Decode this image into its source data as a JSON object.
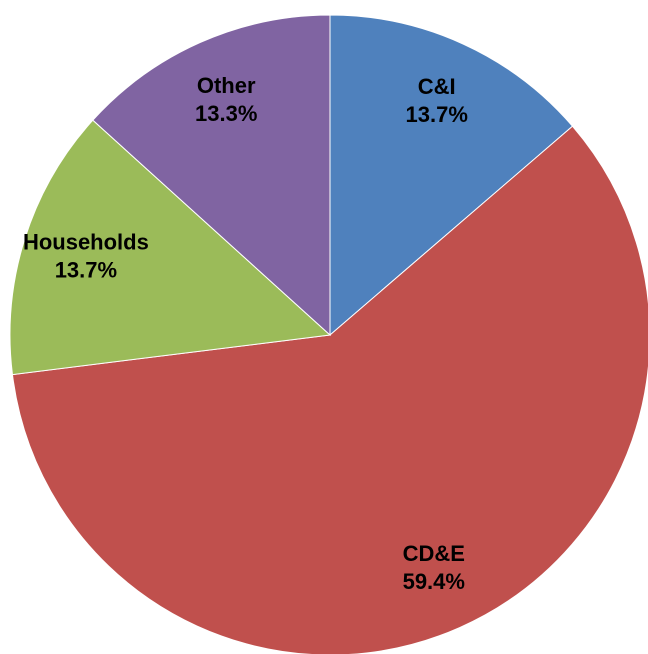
{
  "chart_data": {
    "type": "pie",
    "categories": [
      "C&I",
      "CD&E",
      "Households",
      "Other"
    ],
    "values": [
      13.7,
      59.4,
      13.7,
      13.3
    ],
    "value_labels": [
      "13.7%",
      "59.4%",
      "13.7%",
      "13.3%"
    ],
    "colors": [
      "#4f81bd",
      "#c0504d",
      "#9bbb59",
      "#8064a2"
    ]
  }
}
